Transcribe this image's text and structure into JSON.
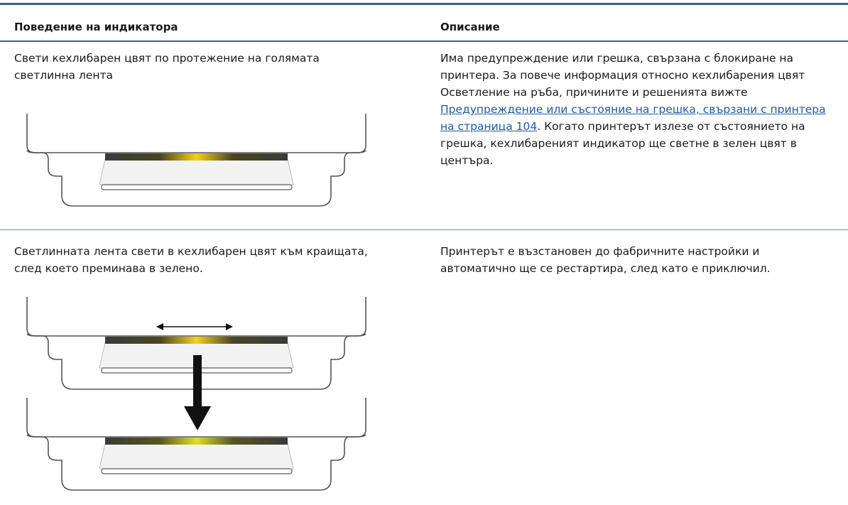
{
  "table": {
    "headers": [
      "Поведение на индикатора",
      "Описание"
    ],
    "rows": [
      {
        "behavior": "Свети кехлибарен цвят по протежение на голямата светлинна лента",
        "description": {
          "before": "Има предупреждение или грешка, свързана с блокиране на принтера. За повече информация относно кехлибарения цвят Осветление на ръба, причините и решенията вижте ",
          "link": "Предупреждение или състояние на грешка, свързани с принтера на страница 104",
          "after": ". Когато принтерът излезе от състоянието на грешка, кехлибареният индикатор ще светне в зелен цвят в центъра."
        }
      },
      {
        "behavior": "Светлинната лента свети в кехлибарен цвят към краищата, след което преминава в зелено.",
        "description": {
          "text": "Принтерът е възстановен до фабричните настройки и автоматично ще се рестартира, след като е приключил."
        }
      }
    ]
  }
}
